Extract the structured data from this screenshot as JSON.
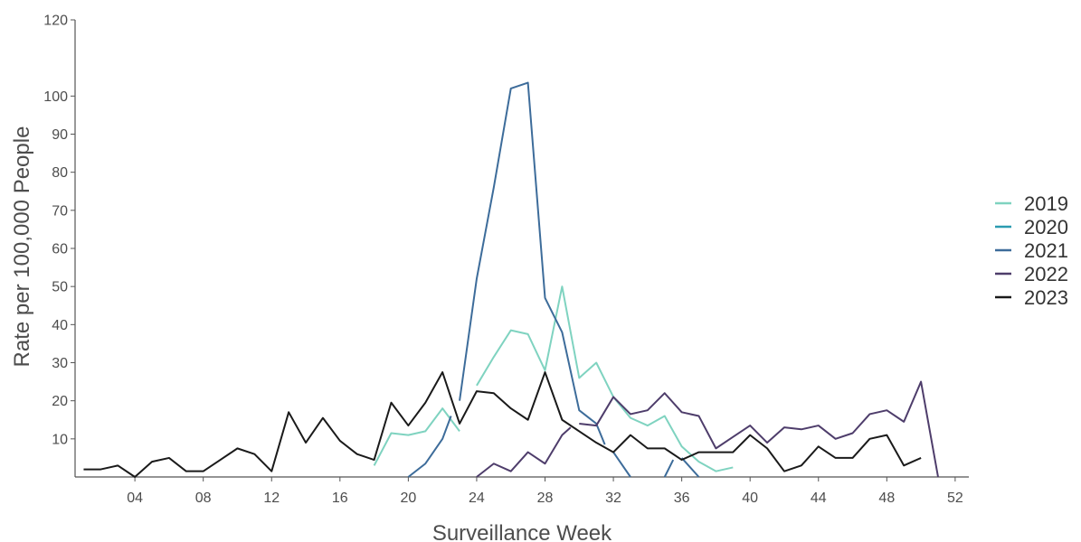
{
  "chart_data": {
    "type": "line",
    "title": "",
    "xlabel": "Surveillance Week",
    "ylabel": "Rate per 100,000 People",
    "xlim": [
      0.5,
      52.8
    ],
    "ylim": [
      0,
      120
    ],
    "x_ticks": [
      4,
      8,
      12,
      16,
      20,
      24,
      28,
      32,
      36,
      40,
      44,
      48,
      52
    ],
    "x_tick_labels": [
      "04",
      "08",
      "12",
      "16",
      "20",
      "24",
      "28",
      "32",
      "36",
      "40",
      "44",
      "48",
      "52"
    ],
    "y_ticks": [
      10,
      20,
      30,
      40,
      50,
      60,
      70,
      80,
      90,
      100,
      120
    ],
    "y_tick_labels": [
      "10",
      "20",
      "30",
      "40",
      "50",
      "60",
      "70",
      "80",
      "90",
      "100",
      "120"
    ],
    "grid": false,
    "legend_position": "right",
    "series": [
      {
        "name": "2019",
        "color": "#7fd3c0",
        "points": [
          [
            18,
            3.0
          ],
          [
            19,
            11.5
          ],
          [
            20,
            11.0
          ],
          [
            21,
            12.0
          ],
          [
            22,
            18.0
          ],
          [
            23,
            12.0
          ],
          null,
          [
            24,
            24.0
          ],
          [
            25,
            31.5
          ],
          [
            26,
            38.5
          ],
          [
            27,
            37.5
          ],
          [
            28,
            28.0
          ],
          [
            29,
            50.0
          ],
          [
            30,
            26.0
          ],
          [
            31,
            30.0
          ],
          [
            32,
            21.0
          ],
          [
            33,
            15.5
          ],
          [
            34,
            13.5
          ],
          [
            35,
            16.0
          ],
          [
            36,
            8.0
          ],
          [
            37,
            4.0
          ],
          [
            38,
            1.5
          ],
          [
            39,
            2.5
          ]
        ]
      },
      {
        "name": "2020",
        "color": "#2b9bb0",
        "points": []
      },
      {
        "name": "2021",
        "color": "#3d6c9a",
        "points": [
          [
            20,
            0
          ],
          [
            21,
            3.5
          ],
          [
            22,
            10.0
          ],
          [
            22.5,
            16.0
          ],
          null,
          [
            23,
            20.0
          ],
          [
            24,
            52.0
          ],
          [
            25,
            76.0
          ],
          [
            26,
            102.0
          ],
          [
            27,
            103.5
          ],
          [
            28,
            47.0
          ],
          [
            29,
            38.0
          ],
          [
            30,
            17.5
          ],
          [
            31,
            14.0
          ],
          [
            31.5,
            8.5
          ],
          null,
          [
            32,
            6.5
          ],
          [
            33,
            0
          ],
          null,
          [
            35,
            0
          ],
          [
            35.5,
            4.5
          ],
          null,
          [
            36,
            5.0
          ],
          [
            37,
            0
          ]
        ]
      },
      {
        "name": "2022",
        "color": "#4e3d6b",
        "points": [
          [
            24,
            0
          ],
          [
            25,
            3.5
          ],
          [
            26,
            1.5
          ],
          [
            27,
            6.5
          ],
          [
            28,
            3.5
          ],
          [
            29,
            11.0
          ],
          [
            29.5,
            13.0
          ],
          null,
          [
            30,
            14.0
          ],
          [
            31,
            13.5
          ],
          [
            32,
            21.0
          ],
          [
            33,
            16.5
          ],
          [
            34,
            17.5
          ],
          [
            35,
            22.0
          ],
          [
            36,
            17.0
          ],
          [
            37,
            16.0
          ],
          [
            38,
            7.5
          ],
          [
            39,
            10.5
          ],
          [
            40,
            13.5
          ],
          [
            41,
            9.0
          ],
          [
            42,
            13.0
          ],
          [
            43,
            12.5
          ],
          [
            44,
            13.5
          ],
          [
            45,
            10.0
          ],
          [
            46,
            11.5
          ],
          [
            47,
            16.5
          ],
          [
            48,
            17.5
          ],
          [
            49,
            14.5
          ],
          [
            50,
            25.0
          ],
          [
            51,
            0
          ]
        ]
      },
      {
        "name": "2023",
        "color": "#1a1a1a",
        "points": [
          [
            1,
            2.0
          ],
          [
            2,
            2.0
          ],
          [
            3,
            3.0
          ],
          [
            4,
            0
          ],
          [
            5,
            4.0
          ],
          [
            6,
            5.0
          ],
          [
            7,
            1.5
          ],
          [
            8,
            1.5
          ],
          [
            9,
            4.5
          ],
          [
            10,
            7.5
          ],
          [
            11,
            6.0
          ],
          [
            12,
            1.5
          ],
          [
            13,
            17.0
          ],
          [
            14,
            9.0
          ],
          [
            15,
            15.5
          ],
          [
            16,
            9.5
          ],
          [
            17,
            6.0
          ],
          [
            18,
            4.5
          ],
          [
            19,
            19.5
          ],
          [
            20,
            13.5
          ],
          [
            21,
            19.5
          ],
          [
            22,
            27.5
          ],
          [
            23,
            14.0
          ],
          [
            24,
            22.5
          ],
          [
            25,
            22.0
          ],
          [
            26,
            18.0
          ],
          [
            27,
            15.0
          ],
          [
            28,
            27.5
          ],
          [
            29,
            15.0
          ],
          [
            30,
            12.0
          ],
          [
            31,
            9.0
          ],
          [
            32,
            6.5
          ],
          [
            33,
            11.0
          ],
          [
            34,
            7.5
          ],
          [
            35,
            7.5
          ],
          [
            36,
            4.5
          ],
          [
            37,
            6.5
          ],
          [
            38,
            6.5
          ],
          [
            39,
            6.5
          ],
          [
            40,
            11.0
          ],
          [
            41,
            7.5
          ],
          [
            42,
            1.5
          ],
          [
            43,
            3.0
          ],
          [
            44,
            8.0
          ],
          [
            45,
            5.0
          ],
          [
            46,
            5.0
          ],
          [
            47,
            10.0
          ],
          [
            48,
            11.0
          ],
          [
            49,
            3.0
          ],
          [
            50,
            5.0
          ]
        ]
      }
    ]
  }
}
